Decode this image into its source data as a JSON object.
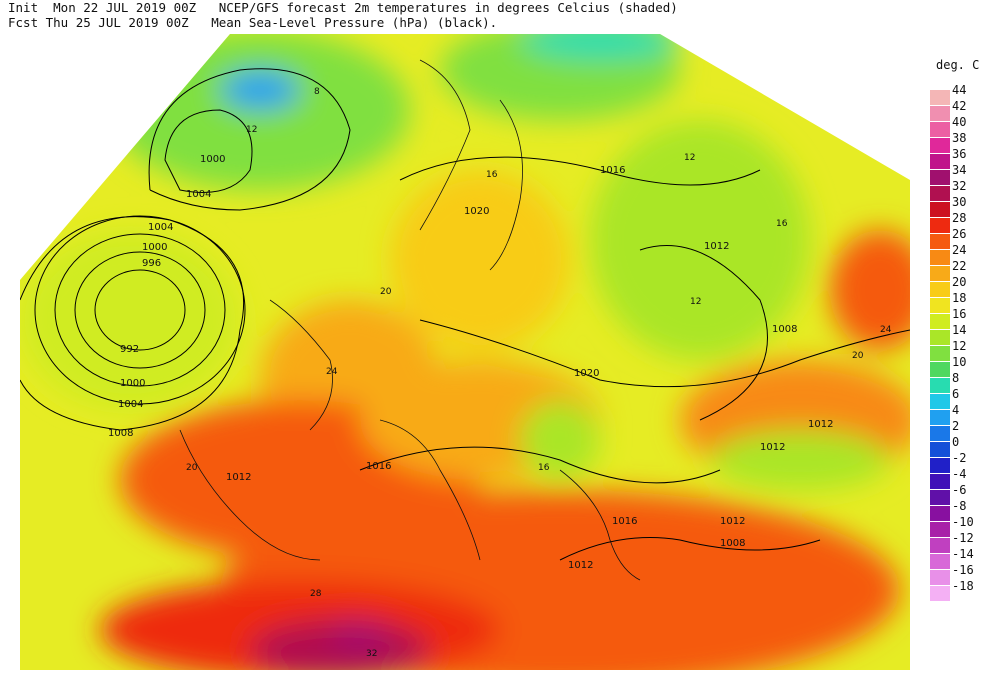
{
  "header": {
    "init_line": "Init  Mon 22 JUL 2019 00Z   NCEP/GFS forecast 2m temperatures in degrees Celcius (shaded)",
    "fcst_line": "Fcst Thu 25 JUL 2019 00Z   Mean Sea-Level Pressure (hPa) (black)."
  },
  "legend": {
    "title": "deg. C",
    "entries": [
      {
        "label": "44",
        "color": "#f4b6b6"
      },
      {
        "label": "42",
        "color": "#f08fb0"
      },
      {
        "label": "40",
        "color": "#ec5fa3"
      },
      {
        "label": "38",
        "color": "#e0289a"
      },
      {
        "label": "36",
        "color": "#c0148a"
      },
      {
        "label": "34",
        "color": "#a0106e"
      },
      {
        "label": "32",
        "color": "#b01050"
      },
      {
        "label": "30",
        "color": "#cc1020"
      },
      {
        "label": "28",
        "color": "#ee2a10"
      },
      {
        "label": "26",
        "color": "#f55a10"
      },
      {
        "label": "24",
        "color": "#f88a14"
      },
      {
        "label": "22",
        "color": "#f8aa18"
      },
      {
        "label": "20",
        "color": "#f8cc18"
      },
      {
        "label": "18",
        "color": "#f0e420"
      },
      {
        "label": "16",
        "color": "#d0ec20"
      },
      {
        "label": "14",
        "color": "#aae628"
      },
      {
        "label": "12",
        "color": "#80e040"
      },
      {
        "label": "10",
        "color": "#50d860"
      },
      {
        "label": "8",
        "color": "#28dcb0"
      },
      {
        "label": "6",
        "color": "#20c8e8"
      },
      {
        "label": "4",
        "color": "#20a0f0"
      },
      {
        "label": "2",
        "color": "#1a78e8"
      },
      {
        "label": "0",
        "color": "#1450d8"
      },
      {
        "label": "-2",
        "color": "#2020c8"
      },
      {
        "label": "-4",
        "color": "#4010b8"
      },
      {
        "label": "-6",
        "color": "#6010a8"
      },
      {
        "label": "-8",
        "color": "#8810a0"
      },
      {
        "label": "-10",
        "color": "#a820a8"
      },
      {
        "label": "-12",
        "color": "#c040c0"
      },
      {
        "label": "-14",
        "color": "#d868d8"
      },
      {
        "label": "-16",
        "color": "#e890e8"
      },
      {
        "label": "-18",
        "color": "#f4b0f4"
      }
    ]
  },
  "isobar_labels": [
    "1000",
    "1004",
    "1004",
    "1000",
    "996",
    "992",
    "1000",
    "1004",
    "1008",
    "1020",
    "1016",
    "1012",
    "1008",
    "1020",
    "1012",
    "1012",
    "1016",
    "1012",
    "1012",
    "1008",
    "1016",
    "1012"
  ],
  "temperature_labels": [
    "8",
    "12",
    "12",
    "16",
    "20",
    "24",
    "28",
    "32",
    "16",
    "20",
    "24",
    "20",
    "16",
    "12"
  ]
}
